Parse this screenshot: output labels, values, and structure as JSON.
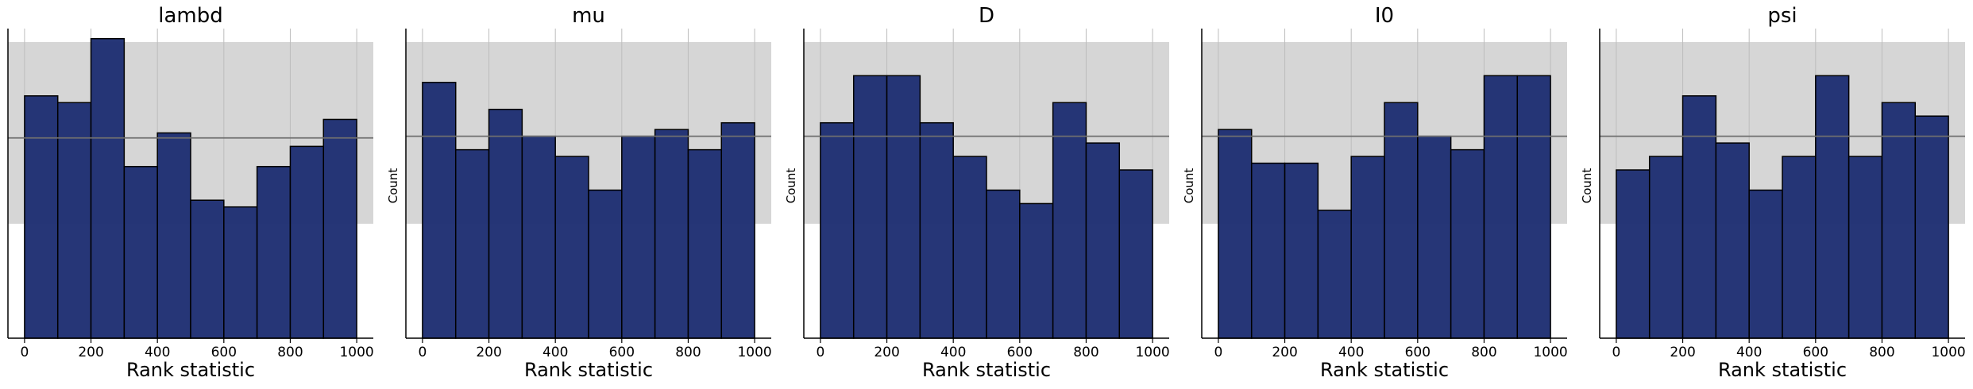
{
  "figure": {
    "ylabel": "Count",
    "xlabel": "Rank statistic"
  },
  "colors": {
    "bar": "#1f2f73",
    "bar_edge": "#000000",
    "band": "#d6d6d6",
    "mean_line": "#6f6f6f",
    "grid": "#bdbdbd"
  },
  "chart_data": [
    {
      "type": "bar",
      "title": "lambd",
      "xlabel": "Rank statistic",
      "ylabel": "",
      "bin_edges": [
        0,
        100,
        200,
        300,
        400,
        500,
        600,
        700,
        800,
        900,
        1000
      ],
      "values": [
        72,
        70,
        89,
        51,
        61,
        41,
        39,
        51,
        57,
        65
      ],
      "ylim": [
        0,
        92
      ],
      "band": [
        34,
        88
      ],
      "mean": 59.5,
      "xticks": [
        0,
        200,
        400,
        600,
        800,
        1000
      ],
      "xlim": [
        -50,
        1050
      ]
    },
    {
      "type": "bar",
      "title": "mu",
      "xlabel": "Rank statistic",
      "ylabel": "Count",
      "bin_edges": [
        0,
        100,
        200,
        300,
        400,
        500,
        600,
        700,
        800,
        900,
        1000
      ],
      "values": [
        76,
        56,
        68,
        60,
        54,
        44,
        60,
        62,
        56,
        64
      ],
      "ylim": [
        0,
        92
      ],
      "band": [
        34,
        88
      ],
      "mean": 60,
      "xticks": [
        0,
        200,
        400,
        600,
        800,
        1000
      ],
      "xlim": [
        -50,
        1050
      ]
    },
    {
      "type": "bar",
      "title": "D",
      "xlabel": "Rank statistic",
      "ylabel": "Count",
      "bin_edges": [
        0,
        100,
        200,
        300,
        400,
        500,
        600,
        700,
        800,
        900,
        1000
      ],
      "values": [
        64,
        78,
        78,
        64,
        54,
        44,
        40,
        70,
        58,
        50
      ],
      "ylim": [
        0,
        92
      ],
      "band": [
        34,
        88
      ],
      "mean": 60,
      "xticks": [
        0,
        200,
        400,
        600,
        800,
        1000
      ],
      "xlim": [
        -50,
        1050
      ]
    },
    {
      "type": "bar",
      "title": "I0",
      "xlabel": "Rank statistic",
      "ylabel": "Count",
      "bin_edges": [
        0,
        100,
        200,
        300,
        400,
        500,
        600,
        700,
        800,
        900,
        1000
      ],
      "values": [
        62,
        52,
        52,
        38,
        54,
        70,
        60,
        56,
        78,
        78
      ],
      "ylim": [
        0,
        92
      ],
      "band": [
        34,
        88
      ],
      "mean": 60,
      "xticks": [
        0,
        200,
        400,
        600,
        800,
        1000
      ],
      "xlim": [
        -50,
        1050
      ]
    },
    {
      "type": "bar",
      "title": "psi",
      "xlabel": "Rank statistic",
      "ylabel": "Count",
      "bin_edges": [
        0,
        100,
        200,
        300,
        400,
        500,
        600,
        700,
        800,
        900,
        1000
      ],
      "values": [
        50,
        54,
        72,
        58,
        44,
        54,
        78,
        54,
        70,
        66
      ],
      "ylim": [
        0,
        92
      ],
      "band": [
        34,
        88
      ],
      "mean": 60,
      "xticks": [
        0,
        200,
        400,
        600,
        800,
        1000
      ],
      "xlim": [
        -50,
        1050
      ]
    }
  ]
}
